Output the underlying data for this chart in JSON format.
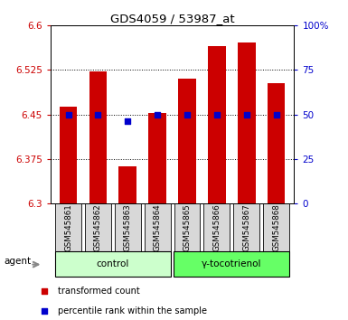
{
  "title": "GDS4059 / 53987_at",
  "samples": [
    "GSM545861",
    "GSM545862",
    "GSM545863",
    "GSM545864",
    "GSM545865",
    "GSM545866",
    "GSM545867",
    "GSM545868"
  ],
  "red_values": [
    6.463,
    6.523,
    6.362,
    6.453,
    6.51,
    6.565,
    6.572,
    6.503
  ],
  "blue_values": [
    50,
    50,
    46,
    50,
    50,
    50,
    50,
    50
  ],
  "ylim": [
    6.3,
    6.6
  ],
  "yticks_left": [
    6.3,
    6.375,
    6.45,
    6.525,
    6.6
  ],
  "yticks_right": [
    0,
    25,
    50,
    75,
    100
  ],
  "right_labels": [
    "0",
    "25",
    "50",
    "75",
    "100%"
  ],
  "groups": [
    {
      "label": "control",
      "samples": [
        0,
        1,
        2,
        3
      ],
      "color": "#ccffcc"
    },
    {
      "label": "γ-tocotrienol",
      "samples": [
        4,
        5,
        6,
        7
      ],
      "color": "#66ff66"
    }
  ],
  "bar_color": "#cc0000",
  "dot_color": "#0000cc",
  "bar_width": 0.6,
  "dot_size": 18,
  "bg_color": "#d8d8d8",
  "agent_label": "agent",
  "legend_items": [
    {
      "label": "transformed count",
      "color": "#cc0000"
    },
    {
      "label": "percentile rank within the sample",
      "color": "#0000cc"
    }
  ]
}
